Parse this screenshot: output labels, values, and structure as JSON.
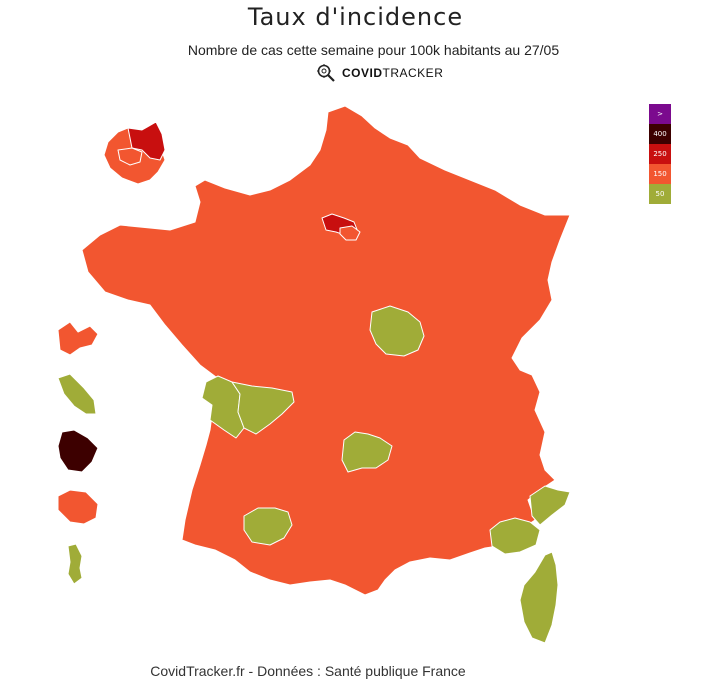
{
  "header": {
    "title": "Taux d'incidence",
    "subtitle": "Nombre de cas cette semaine pour 100k habitants au 27/05",
    "brand_bold": "COVID",
    "brand_light": "TRACKER"
  },
  "legend": [
    {
      "label": ">",
      "color": "#7b0a8e"
    },
    {
      "label": "400",
      "color": "#3d0000"
    },
    {
      "label": "250",
      "color": "#c80f0f"
    },
    {
      "label": "150",
      "color": "#f25630"
    },
    {
      "label": "50",
      "color": "#a0ac38"
    }
  ],
  "colors": {
    "orange": "#f25630",
    "green": "#a0ac38",
    "red": "#c80f0f",
    "darkred": "#3d0000",
    "border": "#ffffff"
  },
  "regions": {
    "metropole": "orange",
    "paris": "red",
    "idf_inner": "orange",
    "cher_area": "green",
    "charente_maritime": "green",
    "vienne_area": "green",
    "puy_de_dome": "green",
    "gers": "green",
    "var": "green",
    "alpes_maritimes": "green",
    "corse": "green",
    "guadeloupe": "orange",
    "martinique": "green",
    "guyane": "darkred",
    "reunion": "orange",
    "mayotte": "green",
    "inset_idf_outer": "orange",
    "inset_idf_north": "red"
  },
  "footer": "CovidTracker.fr - Données : Santé publique France"
}
